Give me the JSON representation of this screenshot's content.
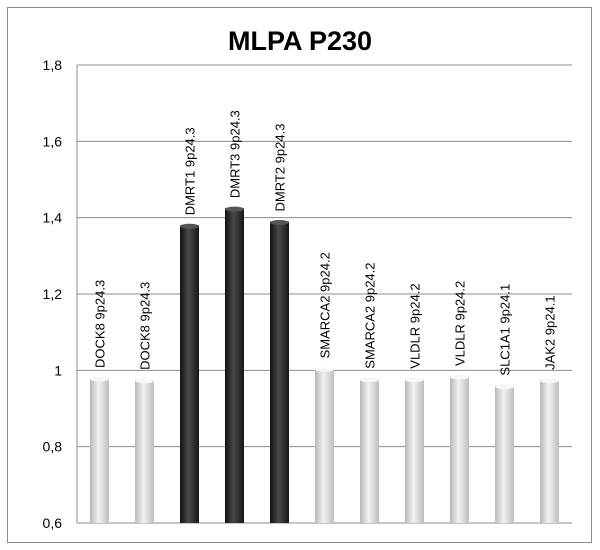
{
  "chart_data": {
    "type": "bar",
    "title": "MLPA P230",
    "xlabel": "",
    "ylabel": "",
    "ylim": [
      0.6,
      1.8
    ],
    "yticks": [
      0.6,
      0.8,
      1,
      1.2,
      1.4,
      1.6,
      1.8
    ],
    "ytick_labels": [
      "0,6",
      "0,8",
      "1",
      "1,2",
      "1,4",
      "1,6",
      "1,8"
    ],
    "grid": true,
    "legend": "none",
    "categories": [
      "DOCK8  9p24.3",
      "DOCK8  9p24.3",
      "DMRT1   9p24.3",
      "DMRT3   9p24.3",
      "DMRT2   9p24.3",
      "SMARCA2   9p24.2",
      "SMARCA2   9p24.2",
      "VLDLR  9p24.2",
      "VLDLR   9p24.2",
      "SLC1A1   9p24.1",
      "JAK2   9p24.1"
    ],
    "values": [
      0.98,
      0.975,
      1.38,
      1.425,
      1.39,
      1.005,
      0.978,
      0.978,
      0.985,
      0.96,
      0.975
    ],
    "bar_colors": [
      "#d4d4d4",
      "#d4d4d4",
      "#2b2b2b",
      "#2b2b2b",
      "#2b2b2b",
      "#d4d4d4",
      "#d4d4d4",
      "#d4d4d4",
      "#d4d4d4",
      "#d4d4d4",
      "#d4d4d4"
    ],
    "highlight_color": "#2b2b2b",
    "normal_color": "#d4d4d4"
  }
}
